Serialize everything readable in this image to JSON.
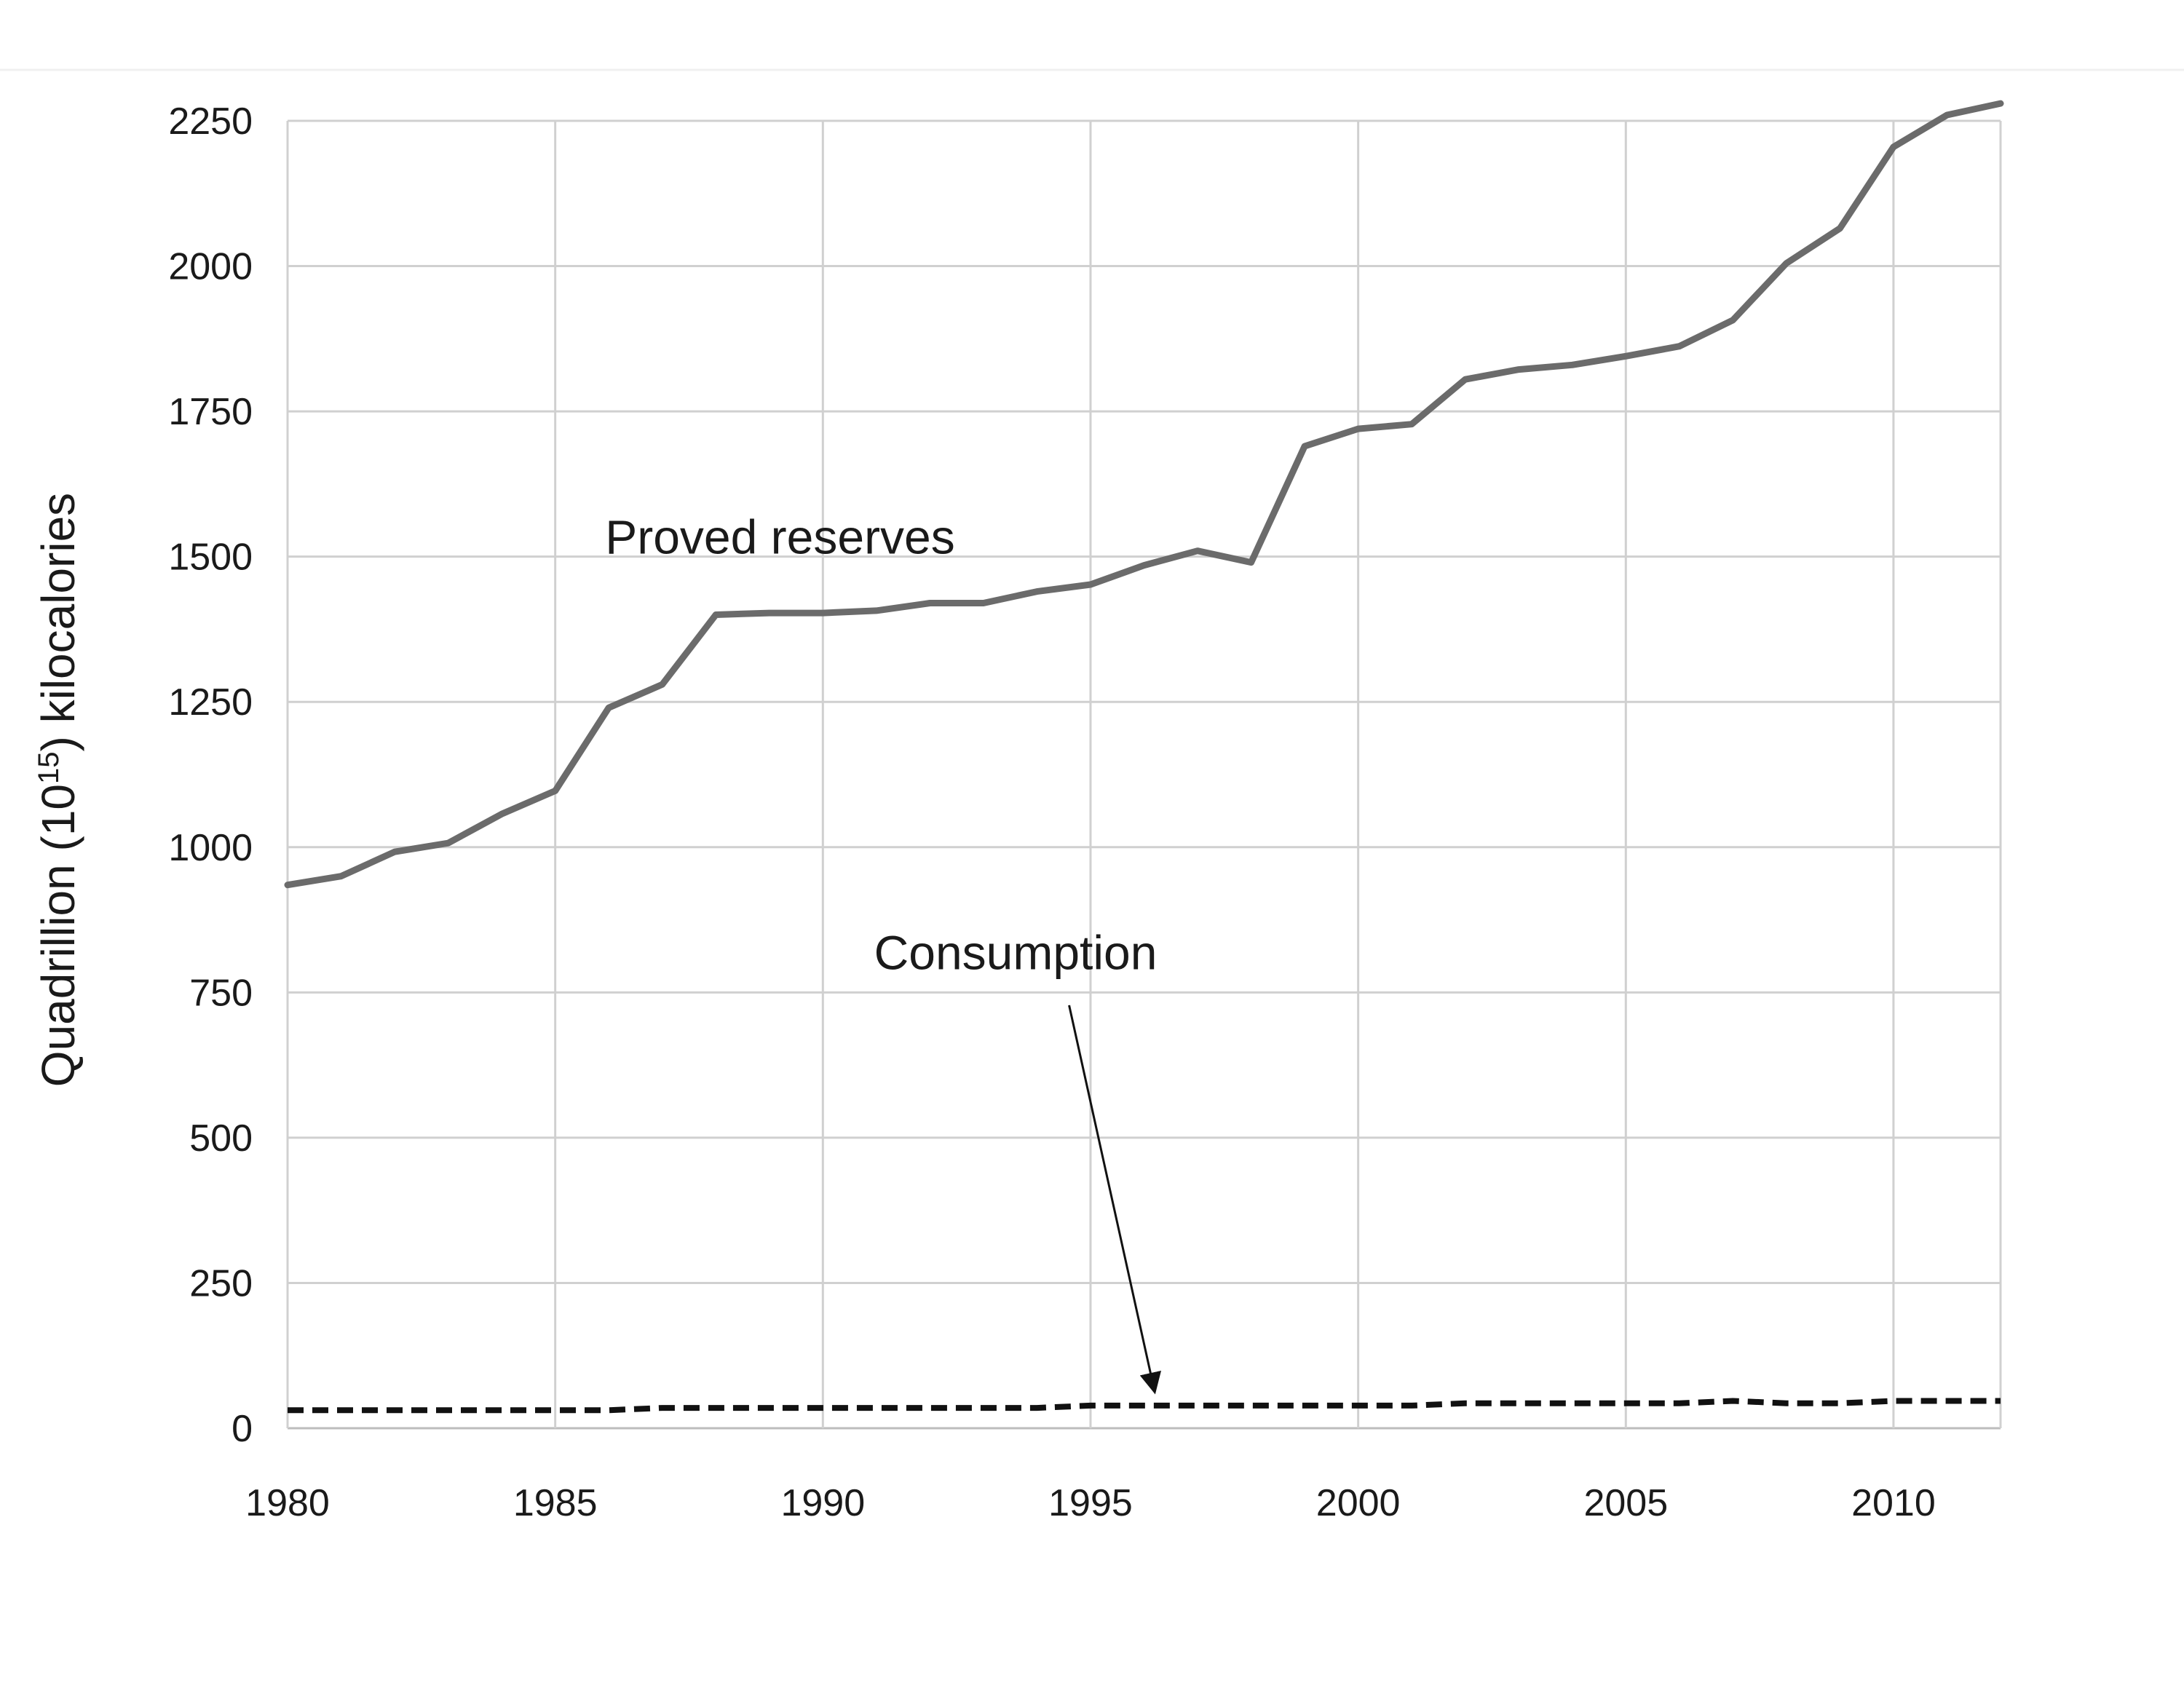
{
  "chart_data": {
    "type": "line",
    "title": "",
    "xlabel": "",
    "ylabel": {
      "prefix": "Quadrillion (10",
      "superscript": "15",
      "suffix": ") kilocalories"
    },
    "xlim": [
      1980,
      2012
    ],
    "ylim": [
      0,
      2250
    ],
    "xticks": [
      1980,
      1985,
      1990,
      1995,
      2000,
      2005,
      2010
    ],
    "yticks": [
      0,
      250,
      500,
      750,
      1000,
      1250,
      1500,
      1750,
      2000,
      2250
    ],
    "grid": true,
    "legend": "none",
    "x": [
      1980,
      1981,
      1982,
      1983,
      1984,
      1985,
      1986,
      1987,
      1988,
      1989,
      1990,
      1991,
      1992,
      1993,
      1994,
      1995,
      1996,
      1997,
      1998,
      1999,
      2000,
      2001,
      2002,
      2003,
      2004,
      2005,
      2006,
      2007,
      2008,
      2009,
      2010,
      2011,
      2012
    ],
    "series": [
      {
        "values": [
          935,
          950,
          992,
          1007,
          1057,
          1097,
          1240,
          1280,
          1400,
          1403,
          1403,
          1407,
          1420,
          1420,
          1440,
          1452,
          1485,
          1510,
          1490,
          1690,
          1720,
          1728,
          1805,
          1822,
          1830,
          1845,
          1862,
          1907,
          2005,
          2065,
          2205,
          2260,
          2280
        ],
        "color": "#6b6b6b",
        "style": "solid"
      },
      {
        "values": [
          31,
          31,
          31,
          31,
          31,
          31,
          31,
          35,
          35,
          35,
          35,
          35,
          35,
          35,
          35,
          39,
          39,
          39,
          39,
          39,
          39,
          39,
          43,
          43,
          43,
          43,
          43,
          47,
          43,
          43,
          47,
          47,
          47
        ],
        "color": "#111111",
        "style": "dashed"
      }
    ],
    "annotations": [
      {
        "text": "Proved reserves",
        "x": 1989.2,
        "y": 1505,
        "anchor": "middle"
      },
      {
        "text": "Consumption",
        "x": 1993.6,
        "y": 790,
        "anchor": "middle",
        "arrow_from": [
          1994.6,
          728
        ],
        "arrow_to": [
          1996.2,
          62
        ]
      }
    ],
    "colors": {
      "grid": "#d0d0d0",
      "axis": "#bdbdbd",
      "text": "#1a1a1a"
    }
  }
}
